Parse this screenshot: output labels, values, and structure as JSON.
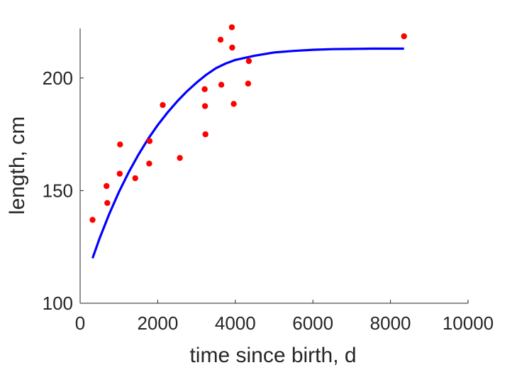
{
  "chart_data": {
    "type": "scatter",
    "title": "",
    "xlabel": "time since birth, d",
    "ylabel": "length, cm",
    "xlim": [
      0,
      10000
    ],
    "ylim": [
      100,
      222
    ],
    "xticks": [
      0,
      2000,
      4000,
      6000,
      8000,
      10000
    ],
    "yticks": [
      100,
      150,
      200
    ],
    "grid": false,
    "legend": "none",
    "series": [
      {
        "kind": "scatter",
        "color": "#ff0000",
        "points": [
          [
            320,
            137
          ],
          [
            680,
            152
          ],
          [
            700,
            144.5
          ],
          [
            1020,
            157.5
          ],
          [
            1030,
            170.5
          ],
          [
            1420,
            155.5
          ],
          [
            1780,
            162
          ],
          [
            1790,
            172
          ],
          [
            2130,
            188
          ],
          [
            2570,
            164.5
          ],
          [
            3210,
            195
          ],
          [
            3220,
            187.5
          ],
          [
            3230,
            175
          ],
          [
            3620,
            217
          ],
          [
            3640,
            197
          ],
          [
            3910,
            222.5
          ],
          [
            3920,
            213.5
          ],
          [
            3960,
            188.5
          ],
          [
            4330,
            197.5
          ],
          [
            4350,
            207.5
          ],
          [
            8350,
            218.5
          ]
        ]
      },
      {
        "kind": "line",
        "color": "#0000ff",
        "points": [
          [
            320,
            120
          ],
          [
            500,
            128.7
          ],
          [
            750,
            139.6
          ],
          [
            1000,
            149.4
          ],
          [
            1250,
            158.1
          ],
          [
            1500,
            165.9
          ],
          [
            1750,
            172.9
          ],
          [
            2000,
            179.1
          ],
          [
            2250,
            184.6
          ],
          [
            2500,
            189.6
          ],
          [
            2750,
            194
          ],
          [
            3000,
            197.9
          ],
          [
            3250,
            201.4
          ],
          [
            3500,
            204.3
          ],
          [
            3750,
            206.4
          ],
          [
            4000,
            208
          ],
          [
            4500,
            209.9
          ],
          [
            5000,
            211.3
          ],
          [
            5500,
            212
          ],
          [
            6000,
            212.5
          ],
          [
            6500,
            212.8
          ],
          [
            7000,
            212.9
          ],
          [
            7500,
            213
          ],
          [
            8000,
            213
          ],
          [
            8350,
            213
          ]
        ]
      }
    ]
  }
}
